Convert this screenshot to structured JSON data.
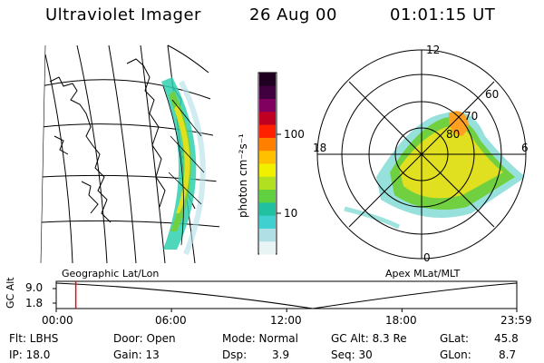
{
  "header": {
    "title": "Ultraviolet Imager",
    "date": "26 Aug 00",
    "time": "01:01:15 UT"
  },
  "panels": {
    "left_label": "Geographic Lat/Lon",
    "right_label": "Apex MLat/MLT"
  },
  "colorbar": {
    "unit": "photon cm⁻²s⁻¹",
    "ticks": [
      {
        "label": "100",
        "value": 100
      },
      {
        "label": "10",
        "value": 10
      }
    ],
    "colors": [
      "#e8f4f4",
      "#b0e0e6",
      "#40d0d0",
      "#20c0a0",
      "#60d040",
      "#b0e020",
      "#f0f000",
      "#ffc000",
      "#ff8000",
      "#ff2000",
      "#c00020",
      "#800060",
      "#400040",
      "#200020"
    ]
  },
  "polar": {
    "mlt_labels": [
      {
        "label": "12",
        "angle": 0
      },
      {
        "label": "18",
        "angle": 270
      },
      {
        "label": "6",
        "angle": 90
      },
      {
        "label": "0",
        "angle": 180
      }
    ],
    "lat_labels": [
      {
        "label": "60",
        "lat": 60
      },
      {
        "label": "70",
        "lat": 70
      },
      {
        "label": "80",
        "lat": 80
      }
    ]
  },
  "timeline": {
    "ylabel": "GC Alt",
    "y_ticks": [
      "9.0",
      "1.8"
    ],
    "x_ticks": [
      "00:00",
      "06:00",
      "12:00",
      "18:00",
      "23:59"
    ],
    "x_hours": [
      0,
      6,
      12,
      18,
      23.98
    ],
    "current_hour": 1.02,
    "color": "#ff0000"
  },
  "info": {
    "flt": "Flt: LBHS",
    "ip": "IP: 18.0",
    "door": "Door: Open",
    "gain": "Gain: 13",
    "mode": "Mode: Normal",
    "dsp_label": "Dsp:",
    "dsp_value": "3.9",
    "gc_alt": "GC Alt: 8.3 Re",
    "seq": "Seq: 30",
    "glat_label": "GLat:",
    "glat_value": "45.8",
    "glon_label": "GLon:",
    "glon_value": "8.7"
  }
}
